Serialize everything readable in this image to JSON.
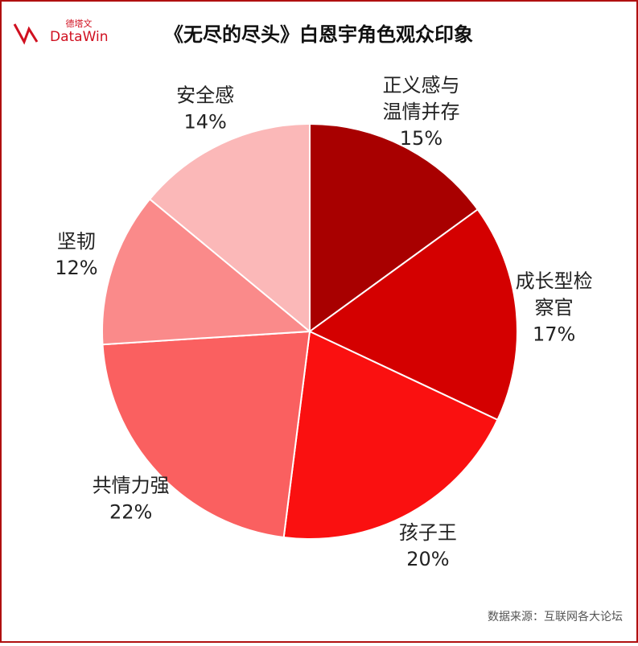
{
  "chart_data": {
    "type": "pie",
    "title": "《无尽的尽头》白恩宇角色观众印象",
    "logo": {
      "name": "DataWin",
      "name_cn": "德塔文"
    },
    "source": "数据来源：互联网各大论坛",
    "categories": [
      [
        "正义感与",
        "温情并存"
      ],
      [
        "成长型检",
        "察官"
      ],
      [
        "孩子王"
      ],
      [
        "共情力强"
      ],
      [
        "坚韧"
      ],
      [
        "安全感"
      ]
    ],
    "values": [
      15,
      17,
      20,
      22,
      12,
      14
    ],
    "value_labels": [
      "15%",
      "17%",
      "20%",
      "22%",
      "12%",
      "14%"
    ],
    "colors": [
      "#a80000",
      "#d40000",
      "#fa1010",
      "#fa6060",
      "#fa8a8a",
      "#fbb8b8"
    ]
  }
}
